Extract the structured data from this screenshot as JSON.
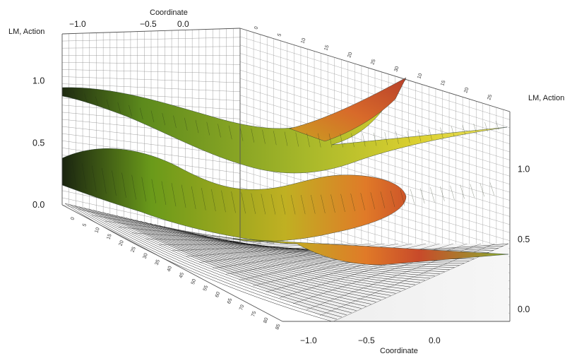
{
  "chart_data": {
    "type": "surface",
    "title": "",
    "axes": {
      "coordinate": {
        "label": "Coordinate",
        "top_ticks": [
          "−1.0",
          "−0.5",
          "0.0"
        ],
        "bottom_ticks": [
          "−1.0",
          "−0.5",
          "0.0"
        ],
        "range": [
          -1.0,
          0.35
        ]
      },
      "value_left": {
        "label": "LM, Action",
        "ticks": [
          "0.0",
          "0.5",
          "1.0"
        ],
        "range": [
          0.0,
          1.3
        ]
      },
      "value_right": {
        "label": "LM, Action",
        "ticks": [
          "0.0",
          "0.5",
          "1.0"
        ],
        "range": [
          0.0,
          1.3
        ]
      },
      "depth": {
        "back_ticks": [
          "0",
          "5",
          "10",
          "15",
          "20",
          "25",
          "30",
          "10",
          "15",
          "20",
          "25"
        ],
        "front_ticks": [
          "0",
          "5",
          "10",
          "15",
          "20",
          "25",
          "30",
          "35",
          "40",
          "45",
          "50",
          "55",
          "60",
          "65",
          "70",
          "75",
          "80",
          "85"
        ]
      }
    },
    "series": [
      {
        "name": "",
        "kind": "upper surface",
        "start_value": 1.0,
        "end_value": 0.85
      },
      {
        "name": "",
        "kind": "middle surface",
        "start_value": 0.4,
        "end_value": 0.4
      },
      {
        "name": "",
        "kind": "floor projection",
        "start_value": 0.0,
        "end_value": 0.0
      }
    ],
    "colors": {
      "surface_high": "#c84a2a",
      "surface_mid": "#f0c020",
      "surface_low": "#6a9a1a",
      "floor_mesh": "#111111",
      "grid": "#8a8a8a"
    },
    "grid": true,
    "legend": "none"
  }
}
